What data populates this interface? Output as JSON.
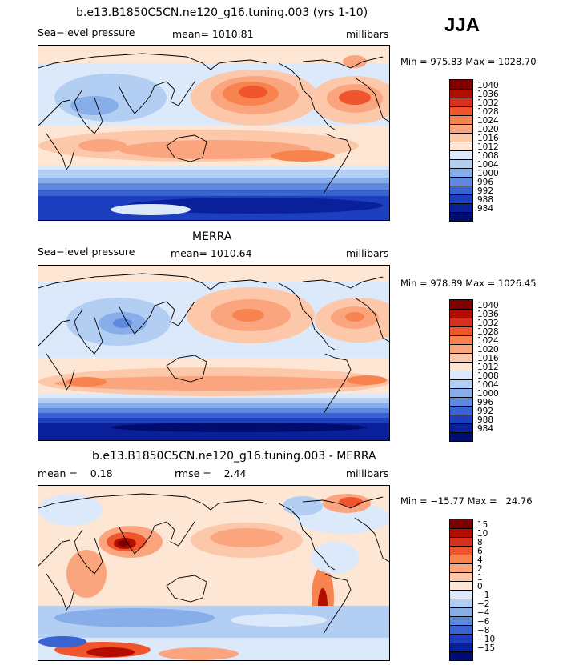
{
  "season": "JJA",
  "panels": [
    {
      "title": "b.e13.B1850C5CN.ne120_g16.tuning.003 (yrs 1-10)",
      "left_label": "Sea−level pressure",
      "center_label": "mean= 1010.81",
      "right_label": "millibars",
      "minmax": "Min = 975.83 Max = 1028.70",
      "colorbar": {
        "labels": [
          "1040",
          "1036",
          "1032",
          "1028",
          "1024",
          "1020",
          "1016",
          "1012",
          "1008",
          "1004",
          "1000",
          "996",
          "992",
          "988",
          "984"
        ],
        "colors": [
          "#7f0000",
          "#b30d00",
          "#d7301f",
          "#f0552d",
          "#f7844f",
          "#fba57f",
          "#fdc7aa",
          "#fde6d4",
          "#dce9fb",
          "#b3cef3",
          "#88aee9",
          "#5f89de",
          "#3a63d2",
          "#1c3fc0",
          "#0a1f9a",
          "#000c6e"
        ]
      }
    },
    {
      "title": "MERRA",
      "left_label": "Sea−level pressure",
      "center_label": "mean= 1010.64",
      "right_label": "millibars",
      "minmax": "Min = 978.89 Max = 1026.45",
      "colorbar": {
        "labels": [
          "1040",
          "1036",
          "1032",
          "1028",
          "1024",
          "1020",
          "1016",
          "1012",
          "1008",
          "1004",
          "1000",
          "996",
          "992",
          "988",
          "984"
        ],
        "colors": [
          "#7f0000",
          "#b30d00",
          "#d7301f",
          "#f0552d",
          "#f7844f",
          "#fba57f",
          "#fdc7aa",
          "#fde6d4",
          "#dce9fb",
          "#b3cef3",
          "#88aee9",
          "#5f89de",
          "#3a63d2",
          "#1c3fc0",
          "#0a1f9a",
          "#000c6e"
        ]
      }
    },
    {
      "title": "b.e13.B1850C5CN.ne120_g16.tuning.003 - MERRA",
      "left_label": "mean =    0.18",
      "center_label": "rmse =    2.44",
      "right_label": "millibars",
      "minmax": "Min = −15.77 Max =   24.76",
      "colorbar": {
        "labels": [
          "15",
          "10",
          "8",
          "6",
          "4",
          "2",
          "1",
          "0",
          "−1",
          "−2",
          "−4",
          "−6",
          "−8",
          "−10",
          "−15"
        ],
        "colors": [
          "#7f0000",
          "#b30d00",
          "#d7301f",
          "#f0552d",
          "#f7844f",
          "#fba57f",
          "#fdc7aa",
          "#fde6d4",
          "#dce9fb",
          "#b3cef3",
          "#88aee9",
          "#5f89de",
          "#3a63d2",
          "#1c3fc0",
          "#0a1f9a",
          "#000c6e"
        ]
      }
    }
  ]
}
